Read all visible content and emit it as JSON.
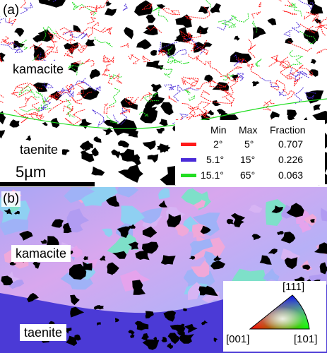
{
  "panel_a": {
    "letter": "(a)",
    "label_kamacite": "kamacite",
    "label_taenite": "taenite",
    "scale_bar": "5µm",
    "legend": {
      "headers": {
        "min": "Min",
        "max": "Max",
        "fraction": "Fraction"
      },
      "rows": [
        {
          "color": "#ff1a1a",
          "min": "2°",
          "max": "5°",
          "fraction": "0.707"
        },
        {
          "color": "#4a2bd8",
          "min": "5.1°",
          "max": "15°",
          "fraction": "0.226"
        },
        {
          "color": "#22dd22",
          "min": "15.1°",
          "max": "65°",
          "fraction": "0.063"
        }
      ]
    }
  },
  "panel_b": {
    "letter": "(b)",
    "label_kamacite": "kamacite",
    "label_taenite": "taenite",
    "ipf_key": {
      "top": "[111]",
      "left": "[001]",
      "right": "[101]"
    }
  },
  "colors": {
    "boundary_red": "#ff1a1a",
    "boundary_blue": "#4a2bd8",
    "boundary_green": "#22dd22",
    "kamacite_pink": "#c7a8f0",
    "taenite_blue": "#4b3ad6",
    "phase_black": "#000000"
  }
}
